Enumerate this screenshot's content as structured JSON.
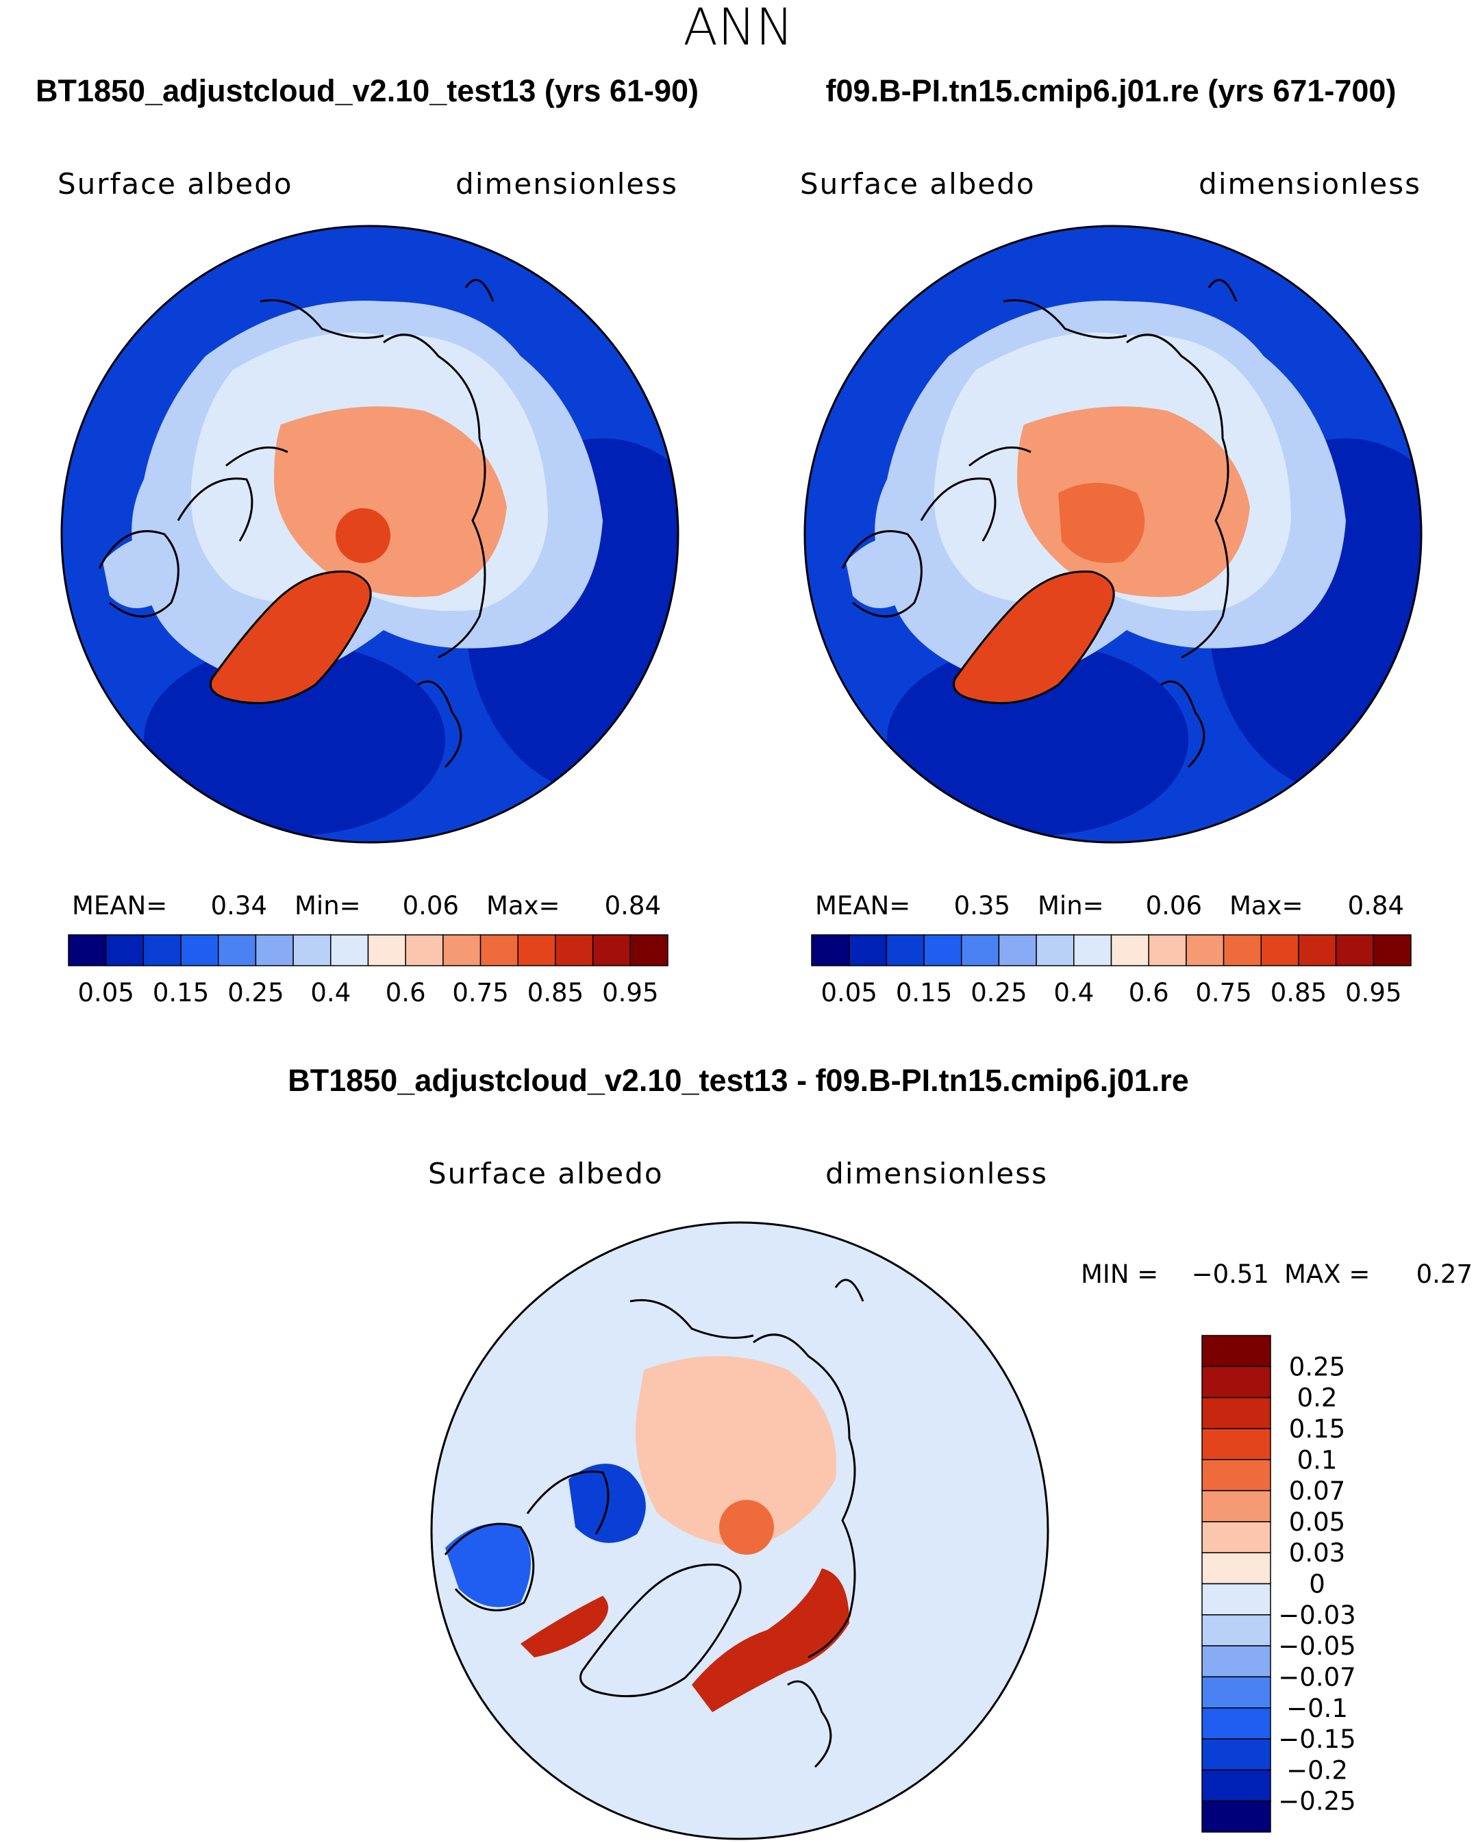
{
  "figure_title": "ANN",
  "chart_data": [
    {
      "type": "heatmap",
      "projection": "north polar stereographic",
      "case_title": "BT1850_adjustcloud_v2.10_test13 (yrs 61-90)",
      "variable": "Surface albedo",
      "units": "dimensionless",
      "stats": {
        "mean_label": "MEAN=",
        "mean": "0.34",
        "min_label": "Min=",
        "min": "0.06",
        "max_label": "Max=",
        "max": "0.84"
      },
      "levels": [
        "0.05",
        "0.15",
        "0.25",
        "0.4",
        "0.6",
        "0.75",
        "0.85",
        "0.95"
      ],
      "colors": [
        "#00007a",
        "#0021b5",
        "#0a3fd6",
        "#1f5ef0",
        "#4a82f4",
        "#87acf5",
        "#b9d0f8",
        "#dbe9fb",
        "#fde7d8",
        "#fbc6ad",
        "#f59a73",
        "#ef6b3c",
        "#e4441b",
        "#c6270e",
        "#a30f0a",
        "#7a0000"
      ],
      "region_classes": {
        "ocean": 2,
        "sea_ice_edge": 6,
        "land": 7,
        "arctic_ice": 10,
        "ice_center": 12,
        "greenland": 12
      }
    },
    {
      "type": "heatmap",
      "projection": "north polar stereographic",
      "case_title": "f09.B-PI.tn15.cmip6.j01.re (yrs 671-700)",
      "variable": "Surface albedo",
      "units": "dimensionless",
      "stats": {
        "mean_label": "MEAN=",
        "mean": "0.35",
        "min_label": "Min=",
        "min": "0.06",
        "max_label": "Max=",
        "max": "0.84"
      },
      "levels": [
        "0.05",
        "0.15",
        "0.25",
        "0.4",
        "0.6",
        "0.75",
        "0.85",
        "0.95"
      ],
      "colors": [
        "#00007a",
        "#0021b5",
        "#0a3fd6",
        "#1f5ef0",
        "#4a82f4",
        "#87acf5",
        "#b9d0f8",
        "#dbe9fb",
        "#fde7d8",
        "#fbc6ad",
        "#f59a73",
        "#ef6b3c",
        "#e4441b",
        "#c6270e",
        "#a30f0a",
        "#7a0000"
      ],
      "region_classes": {
        "ocean": 2,
        "sea_ice_edge": 6,
        "land": 7,
        "arctic_ice": 10,
        "ice_center": 11,
        "greenland": 12
      }
    },
    {
      "type": "heatmap",
      "projection": "north polar stereographic",
      "case_title": "BT1850_adjustcloud_v2.10_test13 - f09.B-PI.tn15.cmip6.j01.re",
      "variable": "Surface albedo",
      "units": "dimensionless",
      "stats": {
        "min_label": "MIN =",
        "min": "−0.51",
        "max_label": "MAX =",
        "max": "0.27"
      },
      "levels": [
        "0.25",
        "0.2",
        "0.15",
        "0.1",
        "0.07",
        "0.05",
        "0.03",
        "0",
        "−0.03",
        "−0.05",
        "−0.07",
        "−0.1",
        "−0.15",
        "−0.2",
        "−0.25"
      ],
      "colors": [
        "#7a0000",
        "#a30f0a",
        "#c6270e",
        "#e4441b",
        "#ef6b3c",
        "#f59a73",
        "#fbc6ad",
        "#fde7d8",
        "#dbe9fb",
        "#b9d0f8",
        "#87acf5",
        "#4a82f4",
        "#1f5ef0",
        "#0a3fd6",
        "#0021b5",
        "#00007a"
      ],
      "region_classes": {
        "background": 8,
        "arctic_ice": 6,
        "center": 4,
        "atlantic_band": 2,
        "canada_arch": 13,
        "hudson": 12
      }
    }
  ]
}
